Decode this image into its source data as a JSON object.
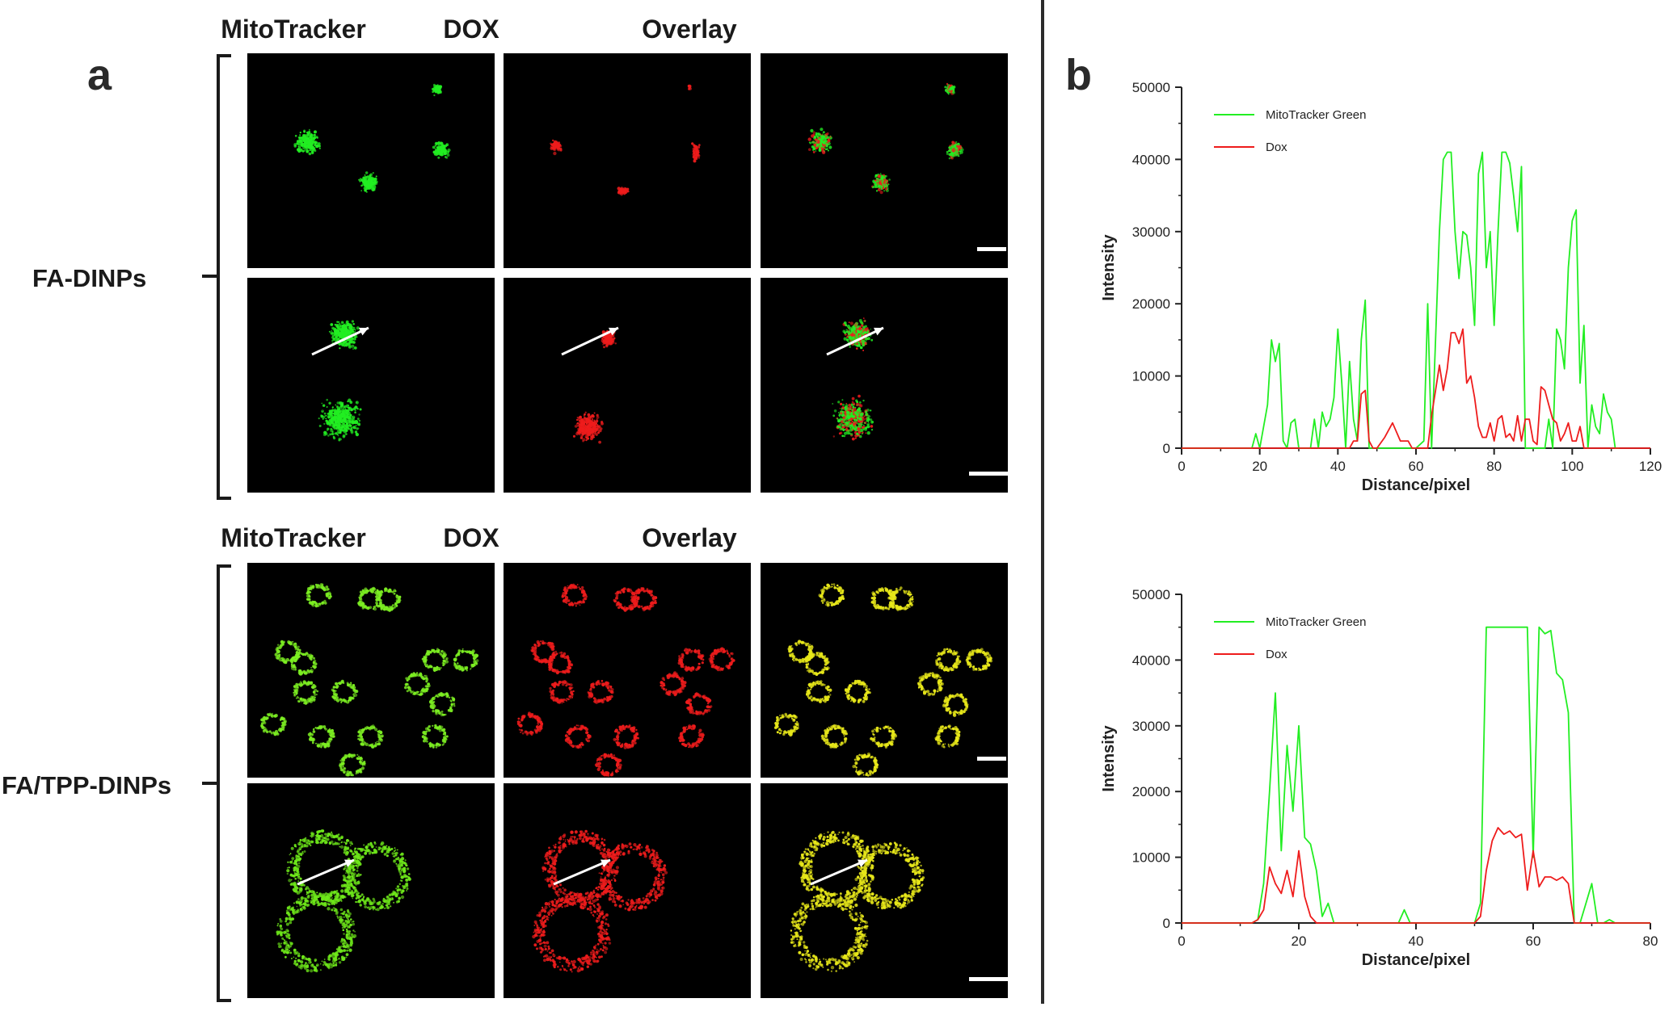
{
  "panel_a": {
    "letter": "a",
    "groups": [
      {
        "label": "FA-DINPs",
        "columns": [
          "MitoTracker",
          "DOX",
          "Overlay"
        ]
      },
      {
        "label": "FA/TPP-DINPs",
        "columns": [
          "MitoTracker",
          "DOX",
          "Overlay"
        ]
      }
    ]
  },
  "panel_b": {
    "letter": "b"
  },
  "colors": {
    "green": "#22ee22",
    "red": "#ee1c1c",
    "yellow": "#e8e81a"
  },
  "chart_data": [
    {
      "type": "line",
      "xlabel": "Distance/pixel",
      "ylabel": "Intensity",
      "xlim": [
        0,
        120
      ],
      "ylim": [
        0,
        50000
      ],
      "xticks": [
        0,
        20,
        40,
        60,
        80,
        100,
        120
      ],
      "yticks": [
        0,
        10000,
        20000,
        30000,
        40000,
        50000
      ],
      "legend": "top-left",
      "series": [
        {
          "name": "MitoTracker Green",
          "color": "#22ee22",
          "x": [
            0,
            18,
            19,
            20,
            22,
            23,
            24,
            25,
            26,
            27,
            28,
            29,
            30,
            31,
            32,
            33,
            34,
            35,
            36,
            37,
            38,
            39,
            40,
            41,
            42,
            43,
            44,
            45,
            46,
            47,
            48,
            49,
            50,
            55,
            60,
            62,
            63,
            64,
            65,
            66,
            67,
            68,
            69,
            70,
            71,
            72,
            73,
            74,
            75,
            76,
            77,
            78,
            79,
            80,
            81,
            82,
            83,
            84,
            85,
            86,
            87,
            88,
            89,
            90,
            91,
            92,
            93,
            94,
            95,
            96,
            97,
            98,
            99,
            100,
            101,
            102,
            103,
            104,
            105,
            106,
            107,
            108,
            109,
            110,
            111,
            112
          ],
          "y": [
            0,
            0,
            2000,
            0,
            6000,
            15000,
            12000,
            14500,
            1000,
            0,
            3500,
            4000,
            0,
            0,
            0,
            0,
            4000,
            0,
            5000,
            3000,
            4000,
            7000,
            16500,
            9000,
            0,
            12000,
            4000,
            1000,
            15000,
            20500,
            0,
            0,
            0,
            0,
            0,
            1000,
            20000,
            0,
            15000,
            30000,
            40000,
            41000,
            41000,
            30000,
            23500,
            30000,
            29500,
            25000,
            17000,
            38000,
            41000,
            25000,
            30000,
            17000,
            30000,
            41000,
            41000,
            39500,
            35000,
            30000,
            39000,
            0,
            0,
            0,
            0,
            0,
            0,
            4000,
            0,
            16500,
            15000,
            11000,
            25000,
            31500,
            33000,
            9000,
            17000,
            0,
            6000,
            3000,
            2000,
            7500,
            5000,
            4000,
            0,
            0
          ]
        },
        {
          "name": "Dox",
          "color": "#ee1c1c",
          "x": [
            0,
            43,
            44,
            45,
            46,
            47,
            48,
            49,
            50,
            52,
            54,
            56,
            58,
            59,
            60,
            63,
            64,
            65,
            66,
            67,
            68,
            69,
            70,
            71,
            72,
            73,
            74,
            75,
            76,
            77,
            78,
            79,
            80,
            81,
            82,
            83,
            84,
            85,
            86,
            87,
            88,
            89,
            90,
            91,
            92,
            93,
            94,
            95,
            96,
            97,
            98,
            99,
            100,
            101,
            102,
            103,
            120
          ],
          "y": [
            0,
            0,
            1000,
            1000,
            7500,
            8000,
            1000,
            0,
            0,
            1500,
            3500,
            1000,
            1000,
            0,
            0,
            0,
            4500,
            8000,
            11500,
            8000,
            11000,
            16000,
            16000,
            14500,
            16500,
            9000,
            10000,
            7000,
            3000,
            1500,
            1500,
            3500,
            1000,
            4000,
            4500,
            1500,
            2000,
            1000,
            4500,
            1000,
            4000,
            4000,
            1000,
            500,
            8500,
            8000,
            6000,
            4000,
            3500,
            1000,
            2000,
            3500,
            1000,
            1000,
            3000,
            0,
            0
          ]
        }
      ]
    },
    {
      "type": "line",
      "xlabel": "Distance/pixel",
      "ylabel": "Intensity",
      "xlim": [
        0,
        80
      ],
      "ylim": [
        0,
        50000
      ],
      "xticks": [
        0,
        20,
        40,
        60,
        80
      ],
      "yticks": [
        0,
        10000,
        20000,
        30000,
        40000,
        50000
      ],
      "legend": "top-left",
      "series": [
        {
          "name": "MitoTracker Green",
          "color": "#22ee22",
          "x": [
            0,
            12,
            13,
            14,
            15,
            16,
            17,
            18,
            19,
            20,
            21,
            22,
            23,
            24,
            25,
            26,
            27,
            30,
            36,
            37,
            38,
            39,
            40,
            45,
            50,
            51,
            52,
            53,
            54,
            55,
            56,
            57,
            58,
            59,
            60,
            61,
            62,
            63,
            64,
            65,
            66,
            67,
            68,
            69,
            70,
            71,
            72,
            73,
            74,
            80
          ],
          "y": [
            0,
            0,
            500,
            6000,
            20000,
            35000,
            11000,
            27000,
            17000,
            30000,
            13000,
            12000,
            8000,
            1000,
            3000,
            0,
            0,
            0,
            0,
            0,
            2000,
            0,
            0,
            0,
            0,
            3000,
            45000,
            45000,
            45000,
            45000,
            45000,
            45000,
            45000,
            45000,
            10000,
            45000,
            44000,
            44500,
            38000,
            37000,
            32000,
            0,
            0,
            3000,
            6000,
            0,
            0,
            500,
            0,
            0
          ]
        },
        {
          "name": "Dox",
          "color": "#ee1c1c",
          "x": [
            0,
            12,
            13,
            14,
            15,
            16,
            17,
            18,
            19,
            20,
            21,
            22,
            23,
            24,
            50,
            51,
            52,
            53,
            54,
            55,
            56,
            57,
            58,
            59,
            60,
            61,
            62,
            63,
            64,
            65,
            66,
            67,
            68,
            80
          ],
          "y": [
            0,
            0,
            500,
            2000,
            8500,
            6000,
            4500,
            8000,
            4000,
            11000,
            4000,
            1000,
            0,
            0,
            0,
            1000,
            8000,
            12500,
            14500,
            13500,
            14000,
            13000,
            13500,
            5000,
            11000,
            5500,
            7000,
            7000,
            6500,
            7000,
            6000,
            0,
            0,
            0
          ]
        }
      ]
    }
  ]
}
